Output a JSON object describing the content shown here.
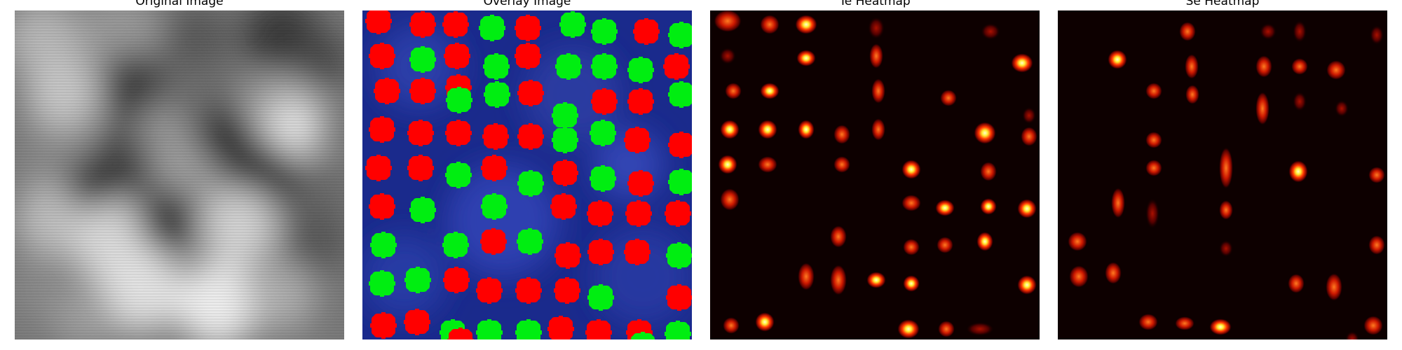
{
  "panels": [
    {
      "title": "Original Image"
    },
    {
      "title": "Overlay Image"
    },
    {
      "title": "Te Heatmap"
    },
    {
      "title": "Se Heatmap"
    }
  ],
  "colors": {
    "background": "#ffffff",
    "overlay_red": "#ff0000",
    "overlay_green": "#00ee11",
    "overlay_bg": "#1a2a8c",
    "heatmap_bg": "#0d0000"
  }
}
